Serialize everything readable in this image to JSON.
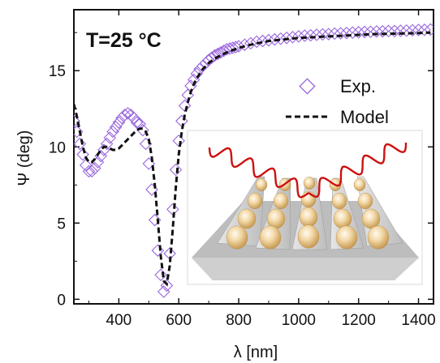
{
  "chart_data": {
    "type": "scatter",
    "annotation": "T=25 °C",
    "xlabel": "λ [nm]",
    "ylabel": "Ψ (deg)",
    "xlim": [
      250,
      1450
    ],
    "ylim": [
      -0.3,
      19
    ],
    "xticks": [
      400,
      600,
      800,
      1000,
      1200,
      1400
    ],
    "yticks": [
      0,
      5,
      10,
      15
    ],
    "legend_position": "right",
    "series": [
      {
        "name": "Exp.",
        "style": "open-diamond-markers",
        "color": "#9966dd",
        "x": [
          250,
          260,
          270,
          280,
          290,
          300,
          310,
          320,
          330,
          340,
          350,
          360,
          370,
          380,
          390,
          400,
          410,
          420,
          430,
          440,
          450,
          460,
          470,
          480,
          490,
          500,
          510,
          520,
          530,
          540,
          550,
          560,
          570,
          580,
          590,
          600,
          610,
          620,
          630,
          640,
          650,
          660,
          670,
          680,
          690,
          700,
          710,
          720,
          730,
          740,
          750,
          760,
          770,
          780,
          790,
          800,
          820,
          840,
          860,
          880,
          900,
          920,
          940,
          960,
          980,
          1000,
          1020,
          1040,
          1060,
          1080,
          1100,
          1120,
          1140,
          1160,
          1180,
          1200,
          1220,
          1240,
          1260,
          1280,
          1300,
          1320,
          1340,
          1360,
          1380,
          1400,
          1420,
          1440
        ],
        "y": [
          11.7,
          11.0,
          10.2,
          9.5,
          8.8,
          8.4,
          8.4,
          8.6,
          9.0,
          9.4,
          9.8,
          10.2,
          10.6,
          11.0,
          11.3,
          11.6,
          11.9,
          12.1,
          12.2,
          12.1,
          11.9,
          11.6,
          11.5,
          11.1,
          10.2,
          8.9,
          7.2,
          5.2,
          3.2,
          1.6,
          0.5,
          0.9,
          3.0,
          5.9,
          8.5,
          10.4,
          11.7,
          12.7,
          13.4,
          14.0,
          14.4,
          14.8,
          15.1,
          15.3,
          15.5,
          15.7,
          15.85,
          16.0,
          16.1,
          16.2,
          16.3,
          16.4,
          16.45,
          16.5,
          16.55,
          16.6,
          16.7,
          16.8,
          16.9,
          16.95,
          17.0,
          17.05,
          17.1,
          17.15,
          17.2,
          17.25,
          17.3,
          17.32,
          17.35,
          17.38,
          17.4,
          17.43,
          17.45,
          17.47,
          17.5,
          17.52,
          17.54,
          17.55,
          17.57,
          17.58,
          17.6,
          17.6,
          17.62,
          17.63,
          17.65,
          17.67,
          17.68,
          17.7
        ]
      },
      {
        "name": "Model",
        "style": "dashed-line",
        "color": "#111111",
        "x": [
          250,
          260,
          270,
          280,
          290,
          300,
          310,
          320,
          330,
          340,
          350,
          360,
          370,
          380,
          390,
          400,
          410,
          420,
          430,
          440,
          450,
          460,
          470,
          480,
          490,
          500,
          510,
          520,
          530,
          540,
          550,
          560,
          570,
          580,
          590,
          600,
          610,
          620,
          630,
          640,
          650,
          660,
          670,
          680,
          690,
          700,
          720,
          740,
          760,
          780,
          800,
          850,
          900,
          950,
          1000,
          1050,
          1100,
          1150,
          1200,
          1250,
          1300,
          1350,
          1400,
          1440
        ],
        "y": [
          12.8,
          12.0,
          11.0,
          10.0,
          9.3,
          9.0,
          9.0,
          9.2,
          9.5,
          9.8,
          10.0,
          10.0,
          9.9,
          9.8,
          9.8,
          9.9,
          10.1,
          10.3,
          10.5,
          10.7,
          10.9,
          11.1,
          11.2,
          11.2,
          11.0,
          10.5,
          9.3,
          7.5,
          5.2,
          2.8,
          1.2,
          1.0,
          2.2,
          4.6,
          7.3,
          9.5,
          11.0,
          12.1,
          12.9,
          13.6,
          14.1,
          14.5,
          14.8,
          15.1,
          15.3,
          15.5,
          15.8,
          16.0,
          16.2,
          16.35,
          16.5,
          16.75,
          16.95,
          17.05,
          17.15,
          17.2,
          17.25,
          17.3,
          17.35,
          17.4,
          17.42,
          17.45,
          17.47,
          17.5
        ]
      }
    ]
  }
}
